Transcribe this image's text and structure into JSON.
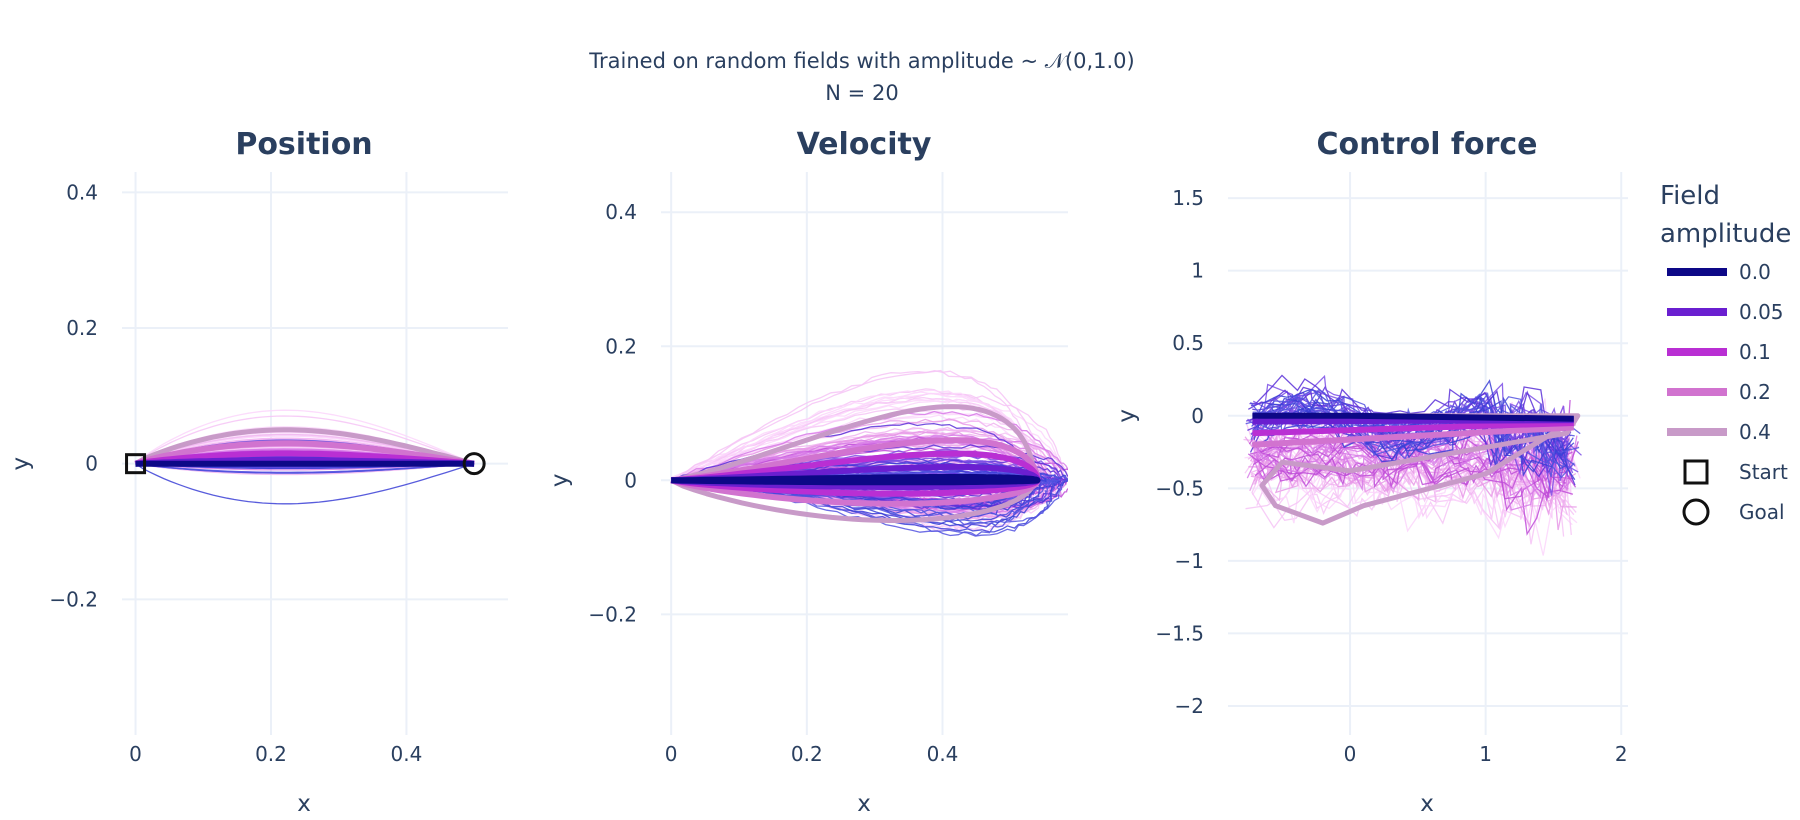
{
  "figure": {
    "title_line1": "Trained on random fields with amplitude ~ 𝒩(0,1.0)",
    "title_line2": "N = 20"
  },
  "legend": {
    "title_line1": "Field",
    "title_line2": "amplitude",
    "items": [
      {
        "label": "0.0",
        "color": "#0d0887"
      },
      {
        "label": "0.05",
        "color": "#6a1fd0"
      },
      {
        "label": "0.1",
        "color": "#b92fd3"
      },
      {
        "label": "0.2",
        "color": "#d173cf"
      },
      {
        "label": "0.4",
        "color": "#c89ac8"
      }
    ],
    "start_label": "Start",
    "goal_label": "Goal"
  },
  "chart_data": [
    {
      "type": "line",
      "title": "Position",
      "xlabel": "x",
      "ylabel": "y",
      "xlim": [
        -0.02,
        0.55
      ],
      "ylim": [
        -0.4,
        0.43
      ],
      "xticks": [
        0,
        0.2,
        0.4
      ],
      "xtick_labels": [
        "0",
        "0.2",
        "0.4"
      ],
      "yticks": [
        -0.2,
        0,
        0.2,
        0.4
      ],
      "ytick_labels": [
        "−0.2",
        "0",
        "0.2",
        "0.4"
      ],
      "grid": true,
      "markers": {
        "start": [
          0,
          0
        ],
        "goal": [
          0.5,
          0
        ]
      },
      "series": [
        {
          "amplitude": "0.0",
          "mean_peak": 0.0,
          "bundle_range": [
            -0.01,
            0.01
          ]
        },
        {
          "amplitude": "0.05",
          "mean_peak": 0.005,
          "bundle_range": [
            -0.05,
            0.03
          ]
        },
        {
          "amplitude": "0.1",
          "mean_peak": 0.015,
          "bundle_range": [
            -0.03,
            0.05
          ]
        },
        {
          "amplitude": "0.2",
          "mean_peak": 0.03,
          "bundle_range": [
            -0.01,
            0.07
          ]
        },
        {
          "amplitude": "0.4",
          "mean_peak": 0.05,
          "bundle_range": [
            0.0,
            0.085
          ]
        }
      ]
    },
    {
      "type": "line",
      "title": "Velocity",
      "xlabel": "x",
      "ylabel": "y",
      "xlim": [
        -0.015,
        0.585
      ],
      "ylim": [
        -0.38,
        0.46
      ],
      "xticks": [
        0,
        0.2,
        0.4
      ],
      "xtick_labels": [
        "0",
        "0.2",
        "0.4"
      ],
      "yticks": [
        -0.2,
        0,
        0.2,
        0.4
      ],
      "ytick_labels": [
        "−0.2",
        "0",
        "0.2",
        "0.4"
      ],
      "grid": true,
      "series": [
        {
          "amplitude": "0.0",
          "mean_loop": {
            "x_max": 0.54,
            "upper": 0.005,
            "lower": -0.003
          }
        },
        {
          "amplitude": "0.05",
          "mean_loop": {
            "x_max": 0.54,
            "upper": 0.02,
            "lower": -0.01
          }
        },
        {
          "amplitude": "0.1",
          "mean_loop": {
            "x_max": 0.54,
            "upper": 0.04,
            "lower": -0.02
          }
        },
        {
          "amplitude": "0.2",
          "mean_loop": {
            "x_max": 0.54,
            "upper": 0.06,
            "lower": -0.035
          }
        },
        {
          "amplitude": "0.4",
          "mean_loop": {
            "x_max": 0.535,
            "upper": 0.11,
            "lower": -0.06
          }
        }
      ]
    },
    {
      "type": "line",
      "title": "Control force",
      "xlabel": "x",
      "ylabel": "y",
      "xlim": [
        -0.9,
        2.05
      ],
      "ylim": [
        -2.2,
        1.68
      ],
      "xticks": [
        0,
        1,
        2
      ],
      "xtick_labels": [
        "0",
        "1",
        "2"
      ],
      "yticks": [
        -2,
        -1.5,
        -1,
        -0.5,
        0,
        0.5,
        1,
        1.5
      ],
      "ytick_labels": [
        "−2",
        "−1.5",
        "−1",
        "−0.5",
        "0",
        "0.5",
        "1",
        "1.5"
      ],
      "grid": true,
      "series": [
        {
          "amplitude": "0.0",
          "mean_force": [
            [
              -0.72,
              0.0
            ],
            [
              0.0,
              0.0
            ],
            [
              1.65,
              -0.02
            ]
          ]
        },
        {
          "amplitude": "0.05",
          "mean_force": [
            [
              -0.72,
              -0.04
            ],
            [
              1.65,
              -0.03
            ]
          ]
        },
        {
          "amplitude": "0.1",
          "mean_force": [
            [
              -0.72,
              -0.12
            ],
            [
              1.65,
              -0.05
            ]
          ]
        },
        {
          "amplitude": "0.2",
          "mean_force": [
            [
              -0.72,
              -0.2
            ],
            [
              1.65,
              -0.08
            ]
          ]
        },
        {
          "amplitude": "0.4",
          "mean_force": [
            [
              0.0,
              0.0
            ],
            [
              1.68,
              0.0
            ],
            [
              1.6,
              -0.12
            ],
            [
              0.0,
              -0.38
            ],
            [
              -0.5,
              -0.32
            ],
            [
              -0.65,
              -0.48
            ],
            [
              -0.55,
              -0.62
            ],
            [
              -0.2,
              -0.74
            ],
            [
              0.1,
              -0.62
            ],
            [
              1.0,
              -0.4
            ],
            [
              1.62,
              -0.05
            ]
          ]
        }
      ]
    }
  ]
}
